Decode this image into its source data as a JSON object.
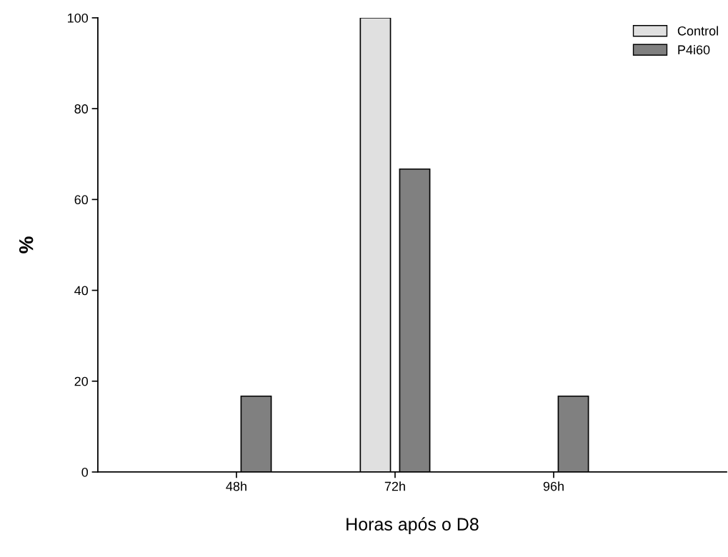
{
  "chart_data": {
    "type": "bar",
    "xlabel": "Horas após o D8",
    "ylabel": "%",
    "categories": [
      "48h",
      "72h",
      "96h"
    ],
    "series": [
      {
        "name": "Control",
        "color": "#e0e0e0",
        "values": [
          0,
          100,
          0
        ]
      },
      {
        "name": "P4i60",
        "color": "#808080",
        "values": [
          16.7,
          66.7,
          16.7
        ]
      }
    ],
    "ylim": [
      0,
      100
    ],
    "yticks": [
      0,
      20,
      40,
      60,
      80,
      100
    ],
    "grid": false,
    "legend": "top right"
  }
}
